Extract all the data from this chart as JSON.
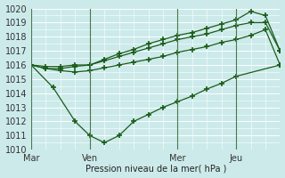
{
  "title": "Pression niveau de la mer( hPa )",
  "bg_color": "#cceaea",
  "grid_color": "#b8d8d8",
  "line_color": "#1a5c1a",
  "ylim": [
    1010,
    1020
  ],
  "xlabels": [
    "Mar",
    "Ven",
    "Mer",
    "Jeu"
  ],
  "vline_positions": [
    0,
    2,
    5,
    7
  ],
  "xmin": 0,
  "xmax": 8.5,
  "series": [
    {
      "x": [
        0,
        0.5,
        1.0,
        1.5,
        2.0,
        2.5,
        3.0,
        3.5,
        4.0,
        4.5,
        5.0,
        5.5,
        6.0,
        6.5,
        7.0,
        7.5,
        8.0,
        8.5
      ],
      "y": [
        1016.0,
        1015.75,
        1015.6,
        1015.5,
        1015.6,
        1015.8,
        1016.0,
        1016.2,
        1016.4,
        1016.6,
        1016.9,
        1017.1,
        1017.3,
        1017.6,
        1017.8,
        1018.1,
        1018.5,
        1016.0
      ]
    },
    {
      "x": [
        0,
        0.5,
        1.0,
        1.5,
        2.0,
        2.5,
        3.0,
        3.5,
        4.0,
        4.5,
        5.0,
        5.5,
        6.0,
        6.5,
        7.0,
        7.5,
        8.0,
        8.5
      ],
      "y": [
        1016.0,
        1015.75,
        1015.75,
        1015.9,
        1016.0,
        1016.3,
        1016.6,
        1016.9,
        1017.2,
        1017.5,
        1017.8,
        1018.0,
        1018.2,
        1018.5,
        1018.8,
        1019.0,
        1019.0,
        1017.0
      ]
    },
    {
      "x": [
        0,
        0.5,
        1.0,
        1.5,
        2.0,
        2.5,
        3.0,
        3.5,
        4.0,
        4.5,
        5.0,
        5.5,
        6.0,
        6.5,
        7.0,
        7.5,
        8.0,
        8.5
      ],
      "y": [
        1016.0,
        1015.9,
        1015.9,
        1016.0,
        1016.0,
        1016.4,
        1016.8,
        1017.1,
        1017.5,
        1017.8,
        1018.1,
        1018.3,
        1018.6,
        1018.9,
        1019.2,
        1019.8,
        1019.5,
        1017.0
      ]
    },
    {
      "x": [
        0,
        0.75,
        1.5,
        2.0,
        2.5,
        3.0,
        3.5,
        4.0,
        4.5,
        5.0,
        5.5,
        6.0,
        6.5,
        7.0,
        8.5
      ],
      "y": [
        1016.0,
        1014.4,
        1012.0,
        1011.0,
        1010.5,
        1011.0,
        1012.0,
        1012.5,
        1013.0,
        1013.4,
        1013.8,
        1014.3,
        1014.7,
        1015.2,
        1016.0
      ]
    }
  ],
  "ylabel_fontsize": 7,
  "tick_fontsize": 7
}
